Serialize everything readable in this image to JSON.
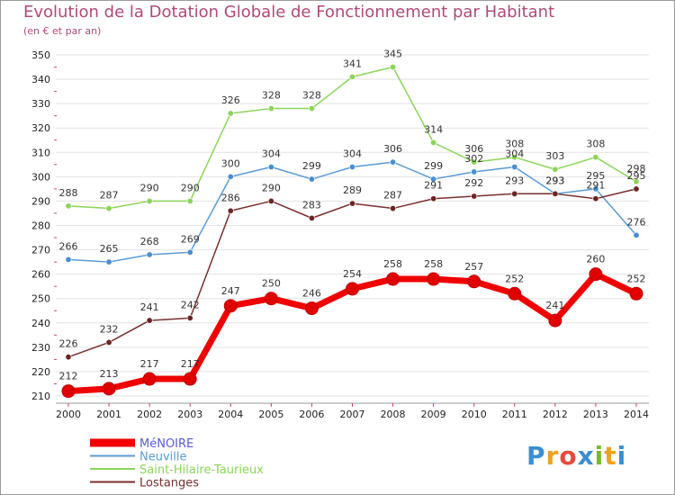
{
  "title": "Evolution de la Dotation Globale de Fonctionnement par Habitant",
  "subtitle": "(en € et par an)",
  "logo": {
    "letters": [
      "P",
      "r",
      "o",
      "x",
      "i",
      "t",
      "i"
    ],
    "colors": [
      "#3b8fd1",
      "#f0a020",
      "#e84a3b",
      "#3b8fd1",
      "#7ab830",
      "#f0a020",
      "#3b8fd1"
    ]
  },
  "chart_data": {
    "type": "line",
    "title": "Evolution de la Dotation Globale de Fonctionnement par Habitant",
    "ylabel": "(en € et par an)",
    "xlabel": "",
    "x": [
      "2000",
      "2001",
      "2002",
      "2003",
      "2004",
      "2005",
      "2006",
      "2007",
      "2008",
      "2009",
      "2010",
      "2011",
      "2012",
      "2013",
      "2014"
    ],
    "ylim": [
      210,
      350
    ],
    "yticks": [
      "210",
      "220",
      "230",
      "240",
      "250",
      "260",
      "270",
      "280",
      "290",
      "300",
      "310",
      "320",
      "330",
      "340",
      "350"
    ],
    "grid": true,
    "legend": "bottom-left",
    "series": [
      {
        "name": "Saint-Hilaire-Taurieux",
        "color": "#8cd45a",
        "marker": "#8cd45a",
        "values": [
          288,
          287,
          290,
          290,
          326,
          328,
          328,
          341,
          345,
          314,
          306,
          308,
          303,
          308,
          298
        ],
        "width": 1.5
      },
      {
        "name": "Neuville",
        "color": "#5a9bd4",
        "marker": "#4a8ed0",
        "values": [
          266,
          265,
          268,
          269,
          300,
          304,
          299,
          304,
          306,
          299,
          302,
          304,
          293,
          295,
          276
        ],
        "width": 1.5
      },
      {
        "name": "Lostanges",
        "color": "#7a2e2e",
        "marker": "#6b2424",
        "values": [
          226,
          232,
          241,
          242,
          286,
          290,
          283,
          289,
          287,
          291,
          292,
          293,
          293,
          291,
          295
        ],
        "width": 1.5
      },
      {
        "name": "MéNOIRE",
        "color": "#f00000",
        "marker": "#e00000",
        "values": [
          212,
          213,
          217,
          217,
          247,
          250,
          246,
          254,
          258,
          258,
          257,
          252,
          241,
          260,
          252
        ],
        "width": 7
      }
    ],
    "legend_order": [
      "MéNOIRE",
      "Neuville",
      "Saint-Hilaire-Taurieux",
      "Lostanges"
    ]
  }
}
